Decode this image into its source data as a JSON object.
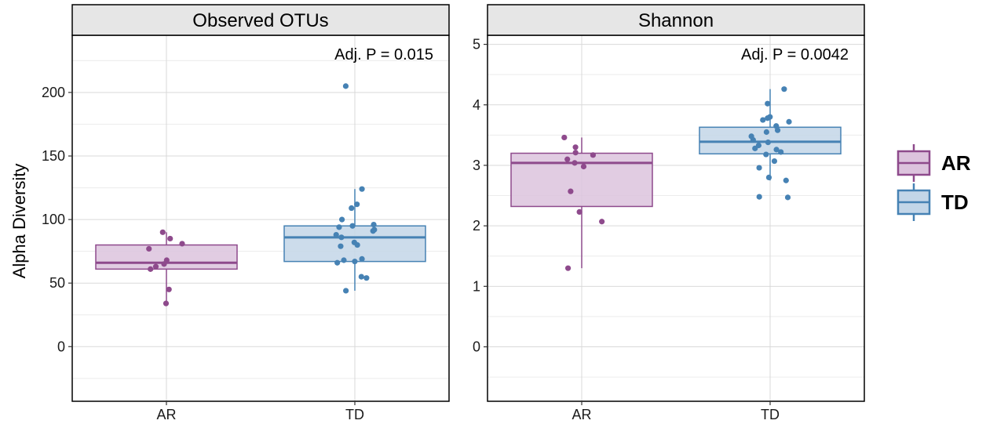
{
  "chart_data": {
    "type": "boxplot",
    "ylabel": "Alpha Diversity",
    "categories": [
      "AR",
      "TD"
    ],
    "colors": {
      "AR": {
        "line": "#8e4a8c",
        "fill": "#dcc3dd"
      },
      "TD": {
        "line": "#4682b4",
        "fill": "#c3d6e8"
      }
    },
    "legend": {
      "position": "right",
      "entries": [
        "AR",
        "TD"
      ]
    },
    "grid": true,
    "panels": [
      {
        "title": "Observed OTUs",
        "annotation": "Adj. P =  0.015",
        "ylim": [
          -43,
          245
        ],
        "yticks": [
          0,
          50,
          100,
          150,
          200
        ],
        "ytick_labels": [
          "0",
          "50",
          "100",
          "150",
          "200"
        ],
        "groups": [
          {
            "name": "AR",
            "stats": {
              "min": 34,
              "q1": 61,
              "median": 66,
              "q3": 80,
              "max": 90
            },
            "points": [
              34,
              45,
              61,
              63,
              65,
              68,
              77,
              81,
              85,
              90
            ]
          },
          {
            "name": "TD",
            "stats": {
              "min": 44,
              "q1": 67,
              "median": 86,
              "q3": 95,
              "max": 124
            },
            "points": [
              44,
              54,
              55,
              66,
              67,
              68,
              69,
              79,
              80,
              82,
              86,
              88,
              91,
              92,
              94,
              95,
              96,
              100,
              109,
              112,
              124,
              205
            ]
          }
        ]
      },
      {
        "title": "Shannon",
        "annotation": "Adj. P =  0.0042",
        "ylim": [
          -0.9,
          5.15
        ],
        "yticks": [
          0,
          1,
          2,
          3,
          4,
          5
        ],
        "ytick_labels": [
          "0",
          "1",
          "2",
          "3",
          "4",
          "5"
        ],
        "groups": [
          {
            "name": "AR",
            "stats": {
              "min": 1.3,
              "q1": 2.32,
              "median": 3.04,
              "q3": 3.2,
              "max": 3.46
            },
            "points": [
              1.3,
              2.07,
              2.23,
              2.57,
              2.98,
              3.04,
              3.1,
              3.17,
              3.21,
              3.3,
              3.46
            ]
          },
          {
            "name": "TD",
            "stats": {
              "min": 2.75,
              "q1": 3.19,
              "median": 3.39,
              "q3": 3.63,
              "max": 4.26
            },
            "points": [
              2.47,
              2.48,
              2.75,
              2.8,
              2.96,
              3.07,
              3.18,
              3.22,
              3.26,
              3.28,
              3.33,
              3.38,
              3.42,
              3.48,
              3.55,
              3.58,
              3.65,
              3.72,
              3.75,
              3.78,
              3.8,
              4.02,
              4.26
            ]
          }
        ]
      }
    ]
  }
}
